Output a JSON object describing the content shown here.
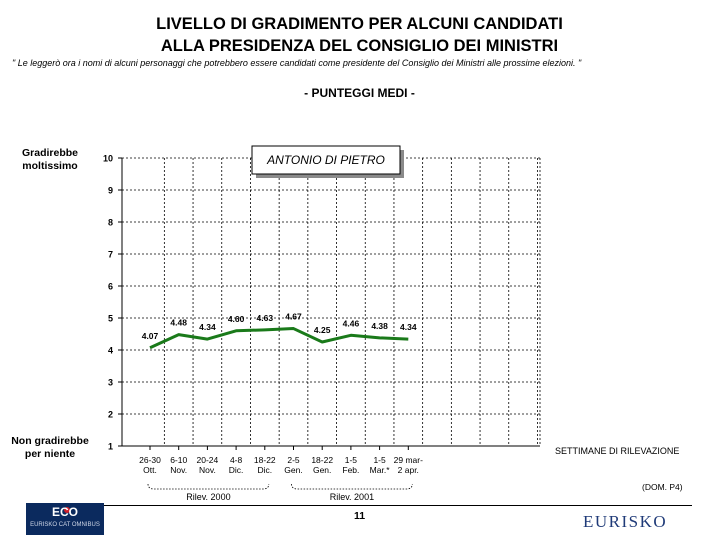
{
  "title_line1": "LIVELLO DI GRADIMENTO PER ALCUNI CANDIDATI",
  "title_line2": "ALLA PRESIDENZA DEL CONSIGLIO DEI MINISTRI",
  "footnote": "\" Le leggerò ora i nomi di alcuni personaggi che potrebbero essere candidati come presidente del Consiglio dei Ministri alle prossime elezioni. \"",
  "subtitle": "- PUNTEGGI MEDI -",
  "y_top_label": [
    "Gradirebbe",
    "moltissimo"
  ],
  "y_bottom_label": [
    "Non gradirebbe",
    "per niente"
  ],
  "weeks_label": "SETTIMANE DI RILEVAZIONE",
  "source_note": "(DOM. P4)",
  "page_number": "11",
  "logos": {
    "eco": "ECO",
    "eco_sub": "EURISKO CAT OMNIBUS",
    "eurisko": "EURISKO"
  },
  "colors": {
    "line": "#1a7a1a",
    "grid": "#000000",
    "logo_bg": "#0b2a5e",
    "logo_text": "#1f3a78"
  },
  "chart_data": {
    "type": "line",
    "legend_box": "ANTONIO DI PIETRO",
    "ylim": [
      1,
      10
    ],
    "yticks": [
      1,
      2,
      3,
      4,
      5,
      6,
      7,
      8,
      9,
      10
    ],
    "grid": true,
    "categories": [
      [
        "26-30",
        "Ott."
      ],
      [
        "6-10",
        "Nov."
      ],
      [
        "20-24",
        "Nov."
      ],
      [
        "4-8",
        "Dic."
      ],
      [
        "18-22",
        "Dic."
      ],
      [
        "2-5",
        "Gen."
      ],
      [
        "18-22",
        "Gen."
      ],
      [
        "1-5",
        "Feb."
      ],
      [
        "1-5",
        "Mar.*"
      ],
      [
        "29 mar-",
        "2 apr."
      ]
    ],
    "series": [
      {
        "name": "ANTONIO DI PIETRO",
        "values": [
          4.07,
          4.48,
          4.34,
          4.6,
          4.63,
          4.67,
          4.25,
          4.46,
          4.38,
          4.34
        ],
        "labels": [
          "4.07",
          "4.48",
          "4.34",
          "4.60",
          "4.63",
          "4.67",
          "4.25",
          "4.46",
          "4.38",
          "4.34"
        ]
      }
    ],
    "groups": [
      {
        "label": "Rilev. 2000",
        "from": 0,
        "to": 4
      },
      {
        "label": "Rilev. 2001",
        "from": 5,
        "to": 9
      }
    ]
  }
}
